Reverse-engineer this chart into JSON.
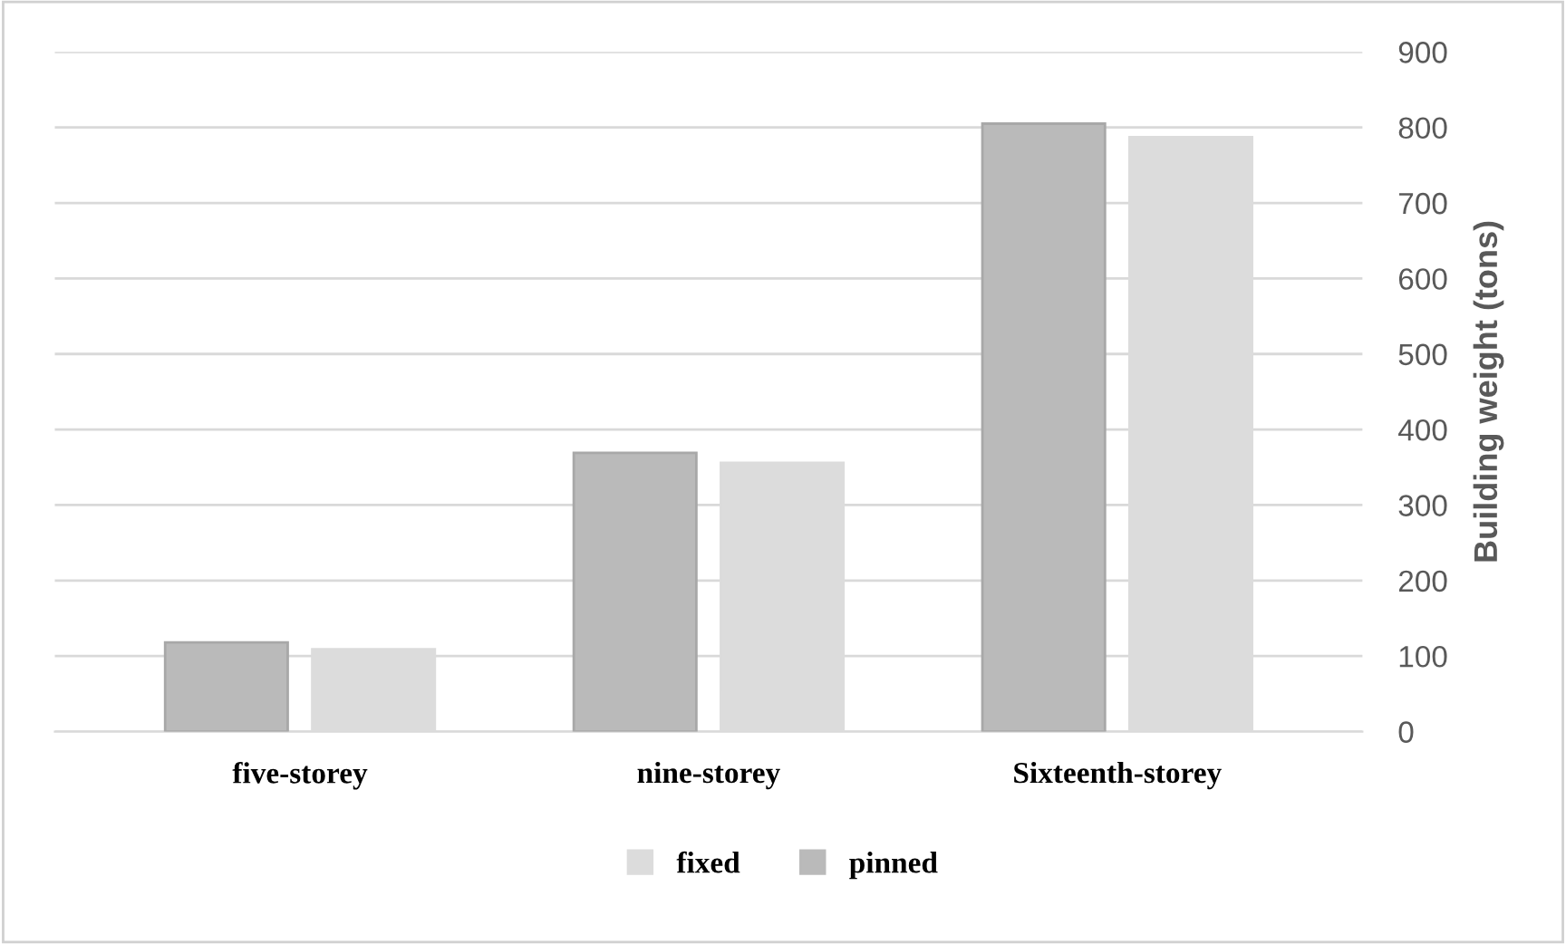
{
  "chart_data": {
    "type": "bar",
    "categories": [
      "five-storey",
      "nine-storey",
      "Sixteenth-storey"
    ],
    "series": [
      {
        "name": "pinned",
        "color": "#bababa",
        "values": [
          118,
          369,
          805
        ]
      },
      {
        "name": "fixed",
        "color": "#dcdcdc",
        "values": [
          109,
          356,
          787
        ]
      }
    ],
    "ylabel": "Building weight (tons)",
    "ylim": [
      0,
      900
    ],
    "yticks": [
      0,
      100,
      200,
      300,
      400,
      500,
      600,
      700,
      800,
      900
    ],
    "grid": "y",
    "legend": "bottom"
  }
}
